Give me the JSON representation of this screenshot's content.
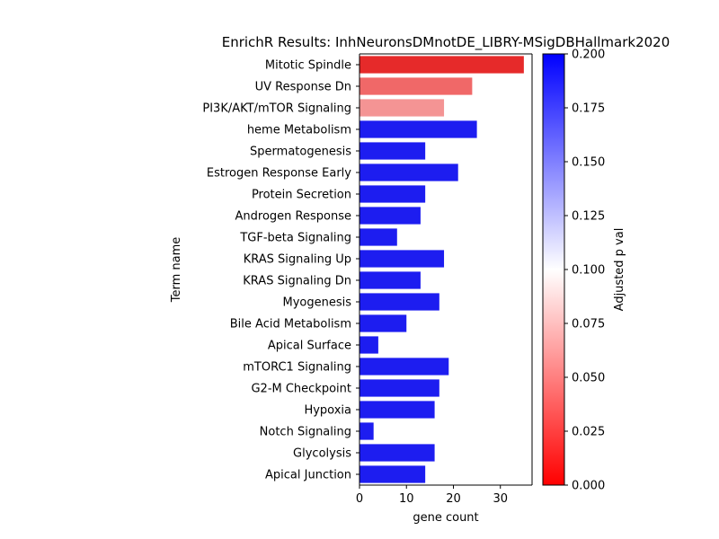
{
  "chart_data": {
    "type": "bar",
    "orientation": "horizontal",
    "title": "EnrichR Results: InhNeuronsDMnotDE_LIBRY-MSigDBHallmark2020",
    "xlabel": "gene count",
    "ylabel": "Term name",
    "xlim": [
      0,
      36.75
    ],
    "xticks": [
      "0",
      "10",
      "20",
      "30"
    ],
    "grid": false,
    "categories": [
      "Mitotic Spindle",
      "UV Response Dn",
      "PI3K/AKT/mTOR  Signaling",
      "heme Metabolism",
      "Spermatogenesis",
      "Estrogen Response Early",
      "Protein Secretion",
      "Androgen Response",
      "TGF-beta Signaling",
      "KRAS Signaling Up",
      "KRAS Signaling Dn",
      "Myogenesis",
      "Bile Acid Metabolism",
      "Apical Surface",
      "mTORC1 Signaling",
      "G2-M Checkpoint",
      "Hypoxia",
      "Notch Signaling",
      "Glycolysis",
      "Apical Junction"
    ],
    "values": [
      35,
      24,
      18,
      25,
      14,
      21,
      14,
      13,
      8,
      18,
      13,
      17,
      10,
      4,
      19,
      17,
      16,
      3,
      16,
      14
    ],
    "bar_colors": [
      "#e62a2a",
      "#f06868",
      "#f49494",
      "#1d1df0",
      "#1d1df0",
      "#1d1df0",
      "#1d1df0",
      "#1d1df0",
      "#1d1df0",
      "#1d1df0",
      "#1d1df0",
      "#1d1df0",
      "#1d1df0",
      "#1d1df0",
      "#1d1df0",
      "#1d1df0",
      "#1d1df0",
      "#1d1df0",
      "#1d1df0",
      "#1d1df0"
    ],
    "colorbar": {
      "label": "Adjusted p val",
      "range": [
        0,
        0.2
      ],
      "ticks": [
        "0.000",
        "0.025",
        "0.050",
        "0.075",
        "0.100",
        "0.125",
        "0.150",
        "0.175",
        "0.200"
      ],
      "colors": [
        "#ff0000",
        "#ffffff",
        "#0000ff"
      ]
    }
  }
}
